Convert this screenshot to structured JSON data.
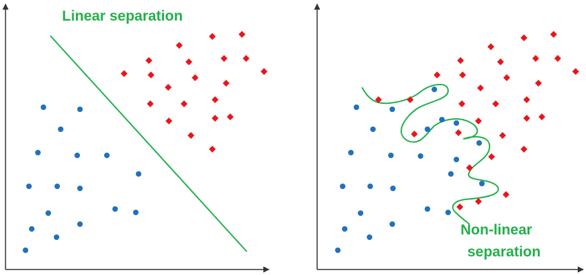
{
  "left_panel": {
    "title": "Linear separation"
  },
  "right_panel": {
    "title_lines": [
      "Non-linear",
      "separation"
    ]
  }
}
